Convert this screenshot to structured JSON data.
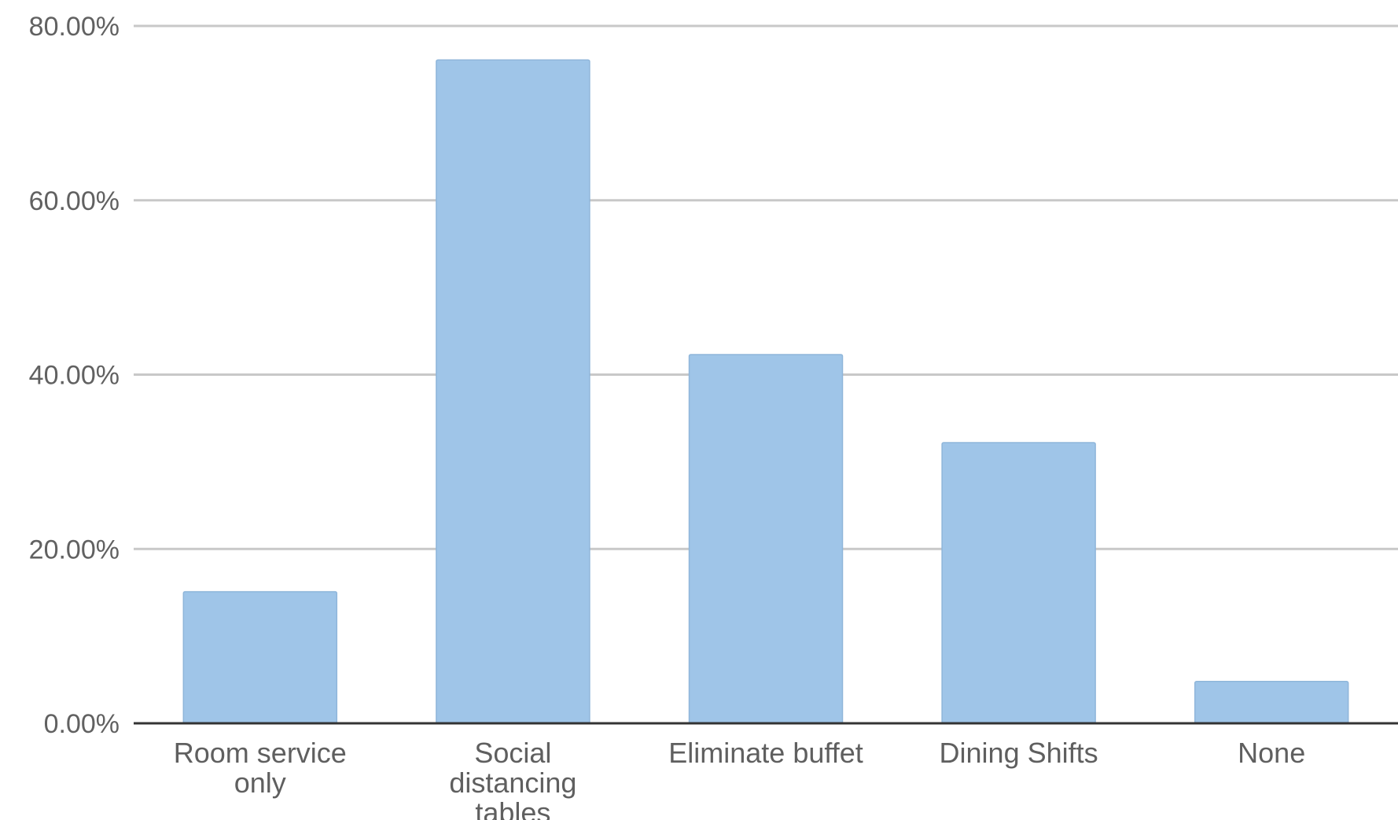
{
  "chart_data": {
    "type": "bar",
    "title": "",
    "xlabel": "",
    "ylabel": "",
    "categories": [
      [
        "Room service",
        "only"
      ],
      [
        "Social",
        "distancing",
        "tables"
      ],
      [
        "Eliminate buffet"
      ],
      [
        "Dining Shifts"
      ],
      [
        "None"
      ]
    ],
    "values": [
      15.1,
      76.1,
      42.3,
      32.2,
      4.8
    ],
    "ylim": [
      0,
      80
    ],
    "yticks": [
      0,
      20,
      40,
      60,
      80
    ],
    "ytick_labels": [
      "0.00%",
      "20.00%",
      "40.00%",
      "60.00%",
      "80.00%"
    ],
    "grid": true,
    "legend": "none",
    "colors": {
      "bar": "#9fc5e8",
      "bar_stroke": "#8fb6da",
      "grid": "#c8c8c8",
      "axis": "#333333",
      "text": "#616161"
    }
  }
}
